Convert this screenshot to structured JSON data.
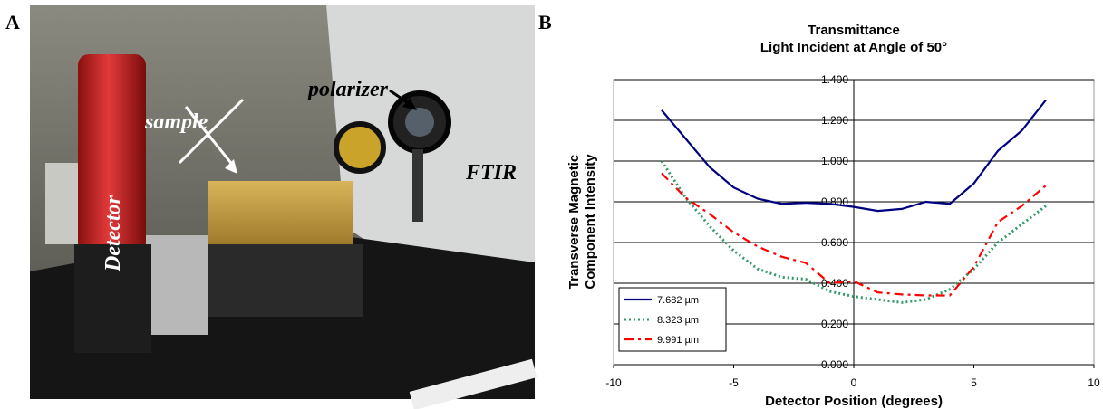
{
  "panel_labels": [
    "A",
    "B"
  ],
  "photo": {
    "labels": [
      "sample",
      "polarizer",
      "Detector",
      "FTIR"
    ]
  },
  "chart_data": {
    "type": "line",
    "title": [
      "Transmittance",
      "Light Incident at Angle of 50°"
    ],
    "ylabel": [
      "Transverse Magnetic",
      "Component Intensity"
    ],
    "xlabel": "Detector Position (degrees)",
    "xlim": [
      -10,
      10
    ],
    "xticks": [
      -10,
      -5,
      0,
      5,
      10
    ],
    "ylim": [
      0,
      1.4
    ],
    "yticks": [
      {
        "value": 0,
        "label": "0.000"
      },
      {
        "value": 0.2,
        "label": "0.200"
      },
      {
        "value": 0.4,
        "label": "0.400"
      },
      {
        "value": 0.6,
        "label": "0.600"
      },
      {
        "value": 0.8,
        "label": "0.800"
      },
      {
        "value": 1.0,
        "label": "1.000"
      },
      {
        "value": 1.2,
        "label": "1.200"
      },
      {
        "value": 1.4,
        "label": "1.400"
      }
    ],
    "grid": true,
    "legend": "lower left",
    "x": [
      -8,
      -7,
      -6,
      -5,
      -4,
      -3,
      -2,
      -1,
      0,
      1,
      2,
      3,
      4,
      5,
      6,
      7,
      8
    ],
    "series": [
      {
        "name": "7.682 µm",
        "color": "#000080",
        "linestyle": "solid",
        "values": [
          1.25,
          1.11,
          0.97,
          0.87,
          0.815,
          0.79,
          0.795,
          0.79,
          0.775,
          0.755,
          0.765,
          0.8,
          0.79,
          0.89,
          1.05,
          1.15,
          1.3
        ]
      },
      {
        "name": "8.323 µm",
        "color": "#339966",
        "linestyle": "dotted",
        "values": [
          1.0,
          0.82,
          0.68,
          0.56,
          0.47,
          0.43,
          0.42,
          0.36,
          0.335,
          0.32,
          0.305,
          0.32,
          0.37,
          0.47,
          0.6,
          0.69,
          0.78
        ]
      },
      {
        "name": "9.991 µm",
        "color": "#ff0000",
        "linestyle": "dashed",
        "values": [
          0.94,
          0.82,
          0.74,
          0.65,
          0.58,
          0.53,
          0.5,
          0.4,
          0.41,
          0.355,
          0.345,
          0.34,
          0.34,
          0.48,
          0.7,
          0.78,
          0.88
        ]
      }
    ]
  }
}
